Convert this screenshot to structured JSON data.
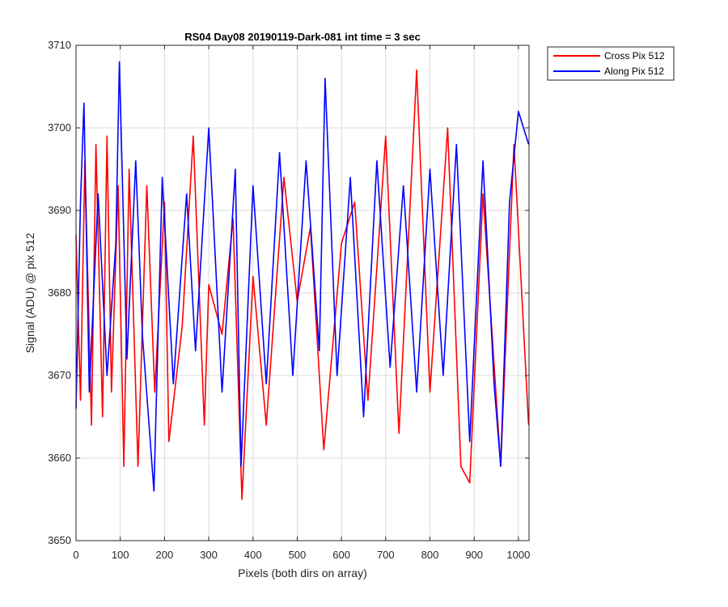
{
  "chart_data": {
    "type": "line",
    "title": "RS04 Day08 20190119-Dark-081 int time = 3 sec",
    "xlabel": "Pixels (both dirs on array)",
    "ylabel": "Signal (ADU) @ pix 512",
    "xlim": [
      0,
      1024
    ],
    "ylim": [
      3650,
      3710
    ],
    "xticks": [
      0,
      100,
      200,
      300,
      400,
      500,
      600,
      700,
      800,
      900,
      1000
    ],
    "yticks": [
      3650,
      3660,
      3670,
      3680,
      3690,
      3700,
      3710
    ],
    "grid": true,
    "legend_location": "outside-top-right",
    "series": [
      {
        "name": "Cross Pix 512",
        "color": "#ff0000",
        "x": [
          0,
          10,
          20,
          35,
          45,
          60,
          70,
          80,
          95,
          108,
          120,
          140,
          160,
          178,
          200,
          210,
          240,
          265,
          290,
          300,
          330,
          355,
          375,
          400,
          430,
          470,
          500,
          530,
          560,
          600,
          630,
          660,
          700,
          730,
          770,
          800,
          840,
          870,
          890,
          920,
          960,
          990,
          1023
        ],
        "y": [
          3687,
          3667,
          3696,
          3664,
          3698,
          3665,
          3699,
          3668,
          3693,
          3659,
          3695,
          3659,
          3693,
          3668,
          3691,
          3662,
          3676,
          3699,
          3664,
          3681,
          3675,
          3689,
          3655,
          3682,
          3664,
          3694,
          3679,
          3688,
          3661,
          3686,
          3691,
          3667,
          3699,
          3663,
          3707,
          3668,
          3700,
          3659,
          3657,
          3692,
          3659,
          3698,
          3664
        ]
      },
      {
        "name": "Along Pix 512",
        "color": "#0000ff",
        "x": [
          0,
          10,
          18,
          30,
          50,
          70,
          90,
          98,
          115,
          135,
          150,
          176,
          195,
          220,
          250,
          270,
          300,
          330,
          360,
          373,
          400,
          430,
          460,
          490,
          520,
          550,
          563,
          590,
          620,
          650,
          680,
          710,
          740,
          770,
          800,
          830,
          860,
          890,
          920,
          945,
          960,
          980,
          1000,
          1023
        ],
        "y": [
          3666,
          3691,
          3703,
          3668,
          3692,
          3670,
          3686,
          3708,
          3672,
          3696,
          3675,
          3656,
          3694,
          3669,
          3692,
          3673,
          3700,
          3668,
          3695,
          3659,
          3693,
          3669,
          3697,
          3670,
          3696,
          3673,
          3706,
          3670,
          3694,
          3665,
          3696,
          3671,
          3693,
          3668,
          3695,
          3670,
          3698,
          3662,
          3696,
          3669,
          3659,
          3691,
          3702,
          3698
        ]
      }
    ]
  }
}
